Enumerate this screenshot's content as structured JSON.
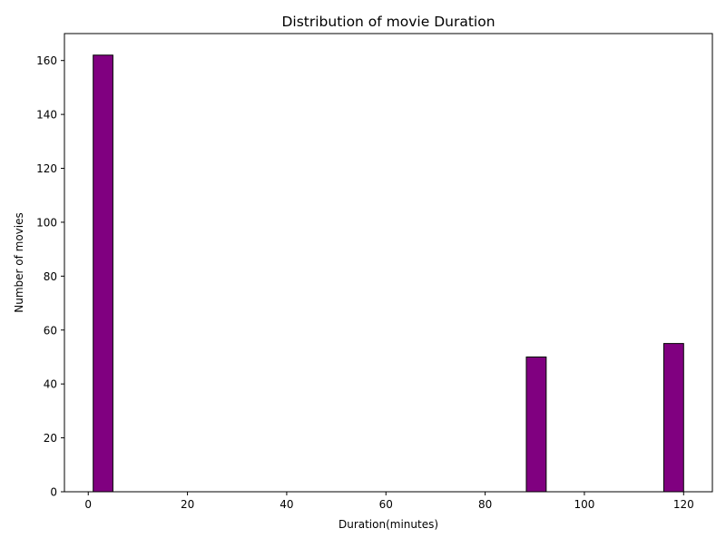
{
  "chart_data": {
    "type": "bar",
    "title": "Distribution of movie Duration",
    "xlabel": "Duration(minutes)",
    "ylabel": "Number of movies",
    "xlim": [
      -4.8,
      125.8
    ],
    "ylim": [
      0,
      170
    ],
    "xticks": [
      0,
      20,
      40,
      60,
      80,
      100,
      120
    ],
    "yticks": [
      0,
      20,
      40,
      60,
      80,
      100,
      120,
      140,
      160
    ],
    "grid": false,
    "legend": "none",
    "bar_color": "#800080",
    "bar_edge_color": "#000000",
    "bins": [
      {
        "start": 1.0,
        "end": 4.97,
        "count": 162
      },
      {
        "start": 88.3,
        "end": 92.3,
        "count": 50
      },
      {
        "start": 116.0,
        "end": 120.0,
        "count": 55
      }
    ]
  }
}
